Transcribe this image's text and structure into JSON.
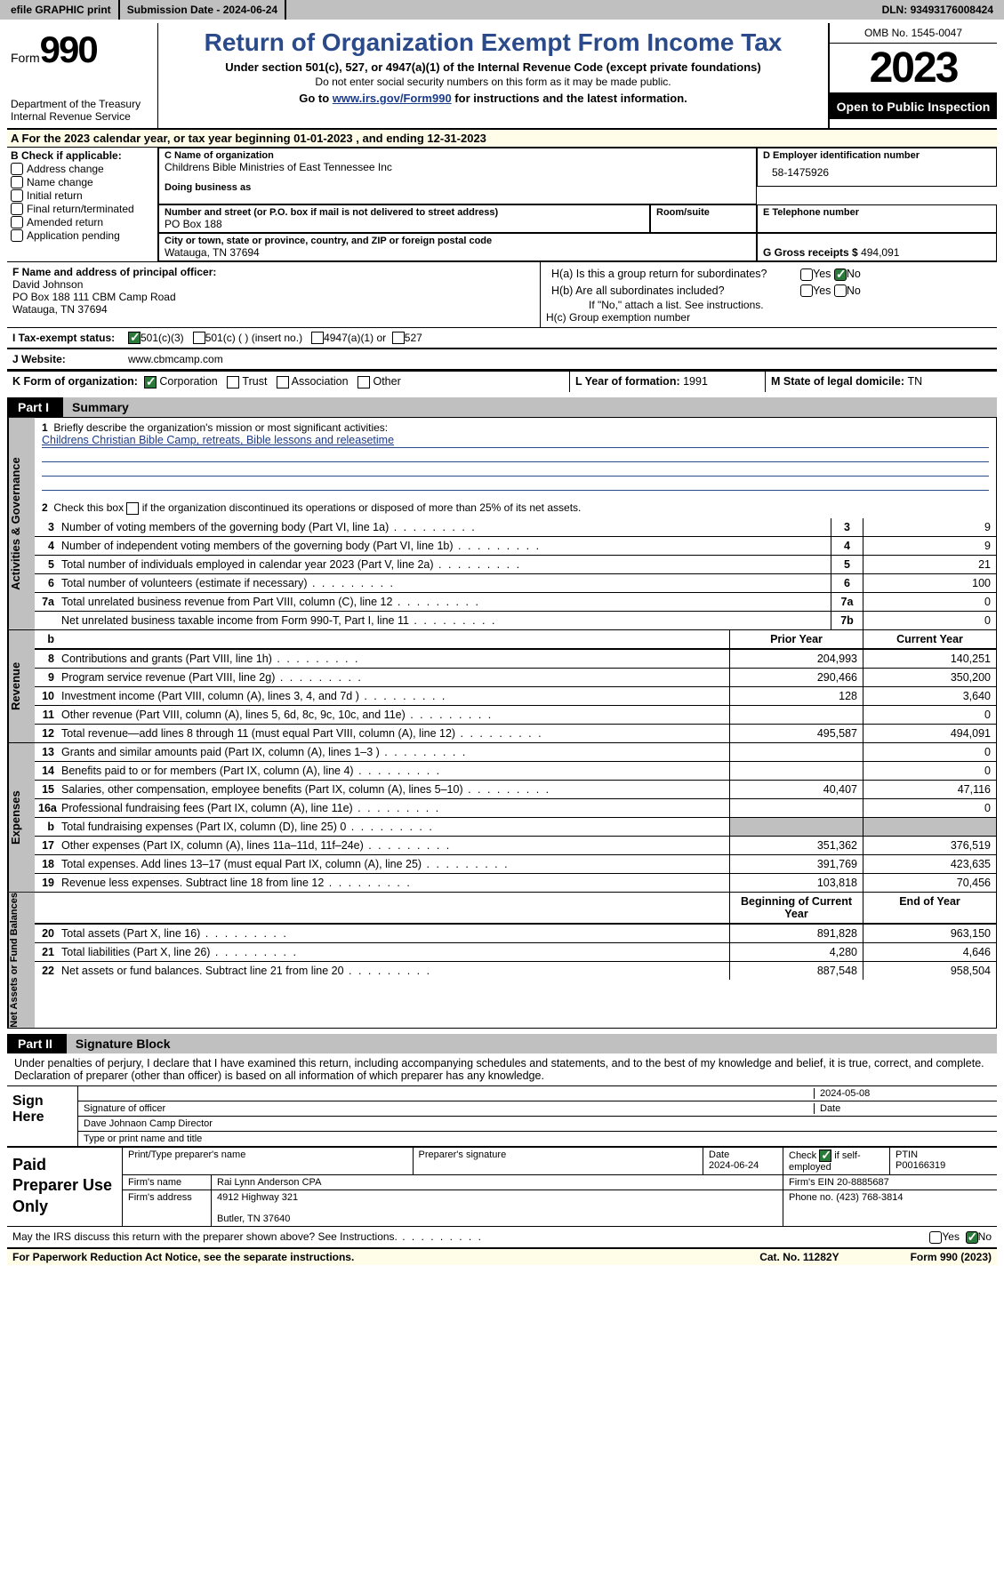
{
  "topbar": {
    "efile": "efile GRAPHIC print",
    "subdate_label": "Submission Date - ",
    "subdate": "2024-06-24",
    "dln_label": "DLN: ",
    "dln": "93493176008424"
  },
  "header": {
    "form_word": "Form",
    "form_no": "990",
    "title": "Return of Organization Exempt From Income Tax",
    "sub1": "Under section 501(c), 527, or 4947(a)(1) of the Internal Revenue Code (except private foundations)",
    "sub2": "Do not enter social security numbers on this form as it may be made public.",
    "sub3a": "Go to ",
    "sub3_link": "www.irs.gov/Form990",
    "sub3b": " for instructions and the latest information.",
    "dept": "Department of the Treasury\nInternal Revenue Service",
    "omb": "OMB No. 1545-0047",
    "year": "2023",
    "open": "Open to Public Inspection"
  },
  "row_a": "A For the 2023 calendar year, or tax year beginning 01-01-2023    , and ending 12-31-2023",
  "col_b": {
    "label": "B Check if applicable:",
    "opts": [
      "Address change",
      "Name change",
      "Initial return",
      "Final return/terminated",
      "Amended return",
      "Application pending"
    ]
  },
  "col_c": {
    "name_label": "C Name of organization",
    "name": "Childrens Bible Ministries of East Tennessee Inc",
    "dba_label": "Doing business as",
    "street_label": "Number and street (or P.O. box if mail is not delivered to street address)",
    "street": "PO Box 188",
    "room_label": "Room/suite",
    "city_label": "City or town, state or province, country, and ZIP or foreign postal code",
    "city": "Watauga, TN   37694"
  },
  "col_d": {
    "label": "D Employer identification number",
    "val": "58-1475926"
  },
  "col_e": {
    "label": "E Telephone number",
    "val": ""
  },
  "col_g": {
    "label": "G Gross receipts $ ",
    "val": "494,091"
  },
  "f": {
    "label": "F  Name and address of principal officer:",
    "name": "David Johnson",
    "addr1": "PO Box 188 111 CBM Camp Road",
    "addr2": "Watauga, TN   37694"
  },
  "h": {
    "a": "H(a)  Is this a group return for subordinates?",
    "b": "H(b)  Are all subordinates included?",
    "bnote": "If \"No,\" attach a list. See instructions.",
    "c": "H(c)  Group exemption number"
  },
  "i": {
    "label": "I    Tax-exempt status:",
    "o1": "501(c)(3)",
    "o2": "501(c) (  ) (insert no.)",
    "o3": "4947(a)(1) or",
    "o4": "527"
  },
  "j": {
    "label": "J    Website:",
    "val": "www.cbmcamp.com"
  },
  "k": {
    "label": "K Form of organization:",
    "o1": "Corporation",
    "o2": "Trust",
    "o3": "Association",
    "o4": "Other"
  },
  "l": {
    "label": "L Year of formation: ",
    "val": "1991"
  },
  "m": {
    "label": "M State of legal domicile: ",
    "val": "TN"
  },
  "part1": {
    "tag": "Part I",
    "title": "Summary"
  },
  "summary": {
    "q1": "Briefly describe the organization's mission or most significant activities:",
    "mission": "Childrens Christian Bible Camp, retreats, Bible lessons and releasetime",
    "q2": "Check this box        if the organization discontinued its operations or disposed of more than 25% of its net assets.",
    "rows_ag": [
      {
        "n": "3",
        "t": "Number of voting members of the governing body (Part VI, line 1a)",
        "bx": "3",
        "v": "9"
      },
      {
        "n": "4",
        "t": "Number of independent voting members of the governing body (Part VI, line 1b)",
        "bx": "4",
        "v": "9"
      },
      {
        "n": "5",
        "t": "Total number of individuals employed in calendar year 2023 (Part V, line 2a)",
        "bx": "5",
        "v": "21"
      },
      {
        "n": "6",
        "t": "Total number of volunteers (estimate if necessary)",
        "bx": "6",
        "v": "100"
      },
      {
        "n": "7a",
        "t": "Total unrelated business revenue from Part VIII, column (C), line 12",
        "bx": "7a",
        "v": "0"
      },
      {
        "n": "",
        "t": "Net unrelated business taxable income from Form 990-T, Part I, line 11",
        "bx": "7b",
        "v": "0"
      }
    ],
    "col_hdr": {
      "prior": "Prior Year",
      "cur": "Current Year",
      "boy": "Beginning of Current Year",
      "eoy": "End of Year"
    },
    "rev": [
      {
        "n": "8",
        "t": "Contributions and grants (Part VIII, line 1h)",
        "p": "204,993",
        "c": "140,251"
      },
      {
        "n": "9",
        "t": "Program service revenue (Part VIII, line 2g)",
        "p": "290,466",
        "c": "350,200"
      },
      {
        "n": "10",
        "t": "Investment income (Part VIII, column (A), lines 3, 4, and 7d )",
        "p": "128",
        "c": "3,640"
      },
      {
        "n": "11",
        "t": "Other revenue (Part VIII, column (A), lines 5, 6d, 8c, 9c, 10c, and 11e)",
        "p": "",
        "c": "0"
      },
      {
        "n": "12",
        "t": "Total revenue—add lines 8 through 11 (must equal Part VIII, column (A), line 12)",
        "p": "495,587",
        "c": "494,091"
      }
    ],
    "exp": [
      {
        "n": "13",
        "t": "Grants and similar amounts paid (Part IX, column (A), lines 1–3 )",
        "p": "",
        "c": "0"
      },
      {
        "n": "14",
        "t": "Benefits paid to or for members (Part IX, column (A), line 4)",
        "p": "",
        "c": "0"
      },
      {
        "n": "15",
        "t": "Salaries, other compensation, employee benefits (Part IX, column (A), lines 5–10)",
        "p": "40,407",
        "c": "47,116"
      },
      {
        "n": "16a",
        "t": "Professional fundraising fees (Part IX, column (A), line 11e)",
        "p": "",
        "c": "0"
      },
      {
        "n": "b",
        "t": "Total fundraising expenses (Part IX, column (D), line 25) 0",
        "p": "GREY",
        "c": "GREY"
      },
      {
        "n": "17",
        "t": "Other expenses (Part IX, column (A), lines 11a–11d, 11f–24e)",
        "p": "351,362",
        "c": "376,519"
      },
      {
        "n": "18",
        "t": "Total expenses. Add lines 13–17 (must equal Part IX, column (A), line 25)",
        "p": "391,769",
        "c": "423,635"
      },
      {
        "n": "19",
        "t": "Revenue less expenses. Subtract line 18 from line 12",
        "p": "103,818",
        "c": "70,456"
      }
    ],
    "na": [
      {
        "n": "20",
        "t": "Total assets (Part X, line 16)",
        "p": "891,828",
        "c": "963,150"
      },
      {
        "n": "21",
        "t": "Total liabilities (Part X, line 26)",
        "p": "4,280",
        "c": "4,646"
      },
      {
        "n": "22",
        "t": "Net assets or fund balances. Subtract line 21 from line 20",
        "p": "887,548",
        "c": "958,504"
      }
    ],
    "tabs": {
      "ag": "Activities & Governance",
      "rev": "Revenue",
      "exp": "Expenses",
      "na": "Net Assets or Fund Balances"
    }
  },
  "part2": {
    "tag": "Part II",
    "title": "Signature Block"
  },
  "sig": {
    "decl": "Under penalties of perjury, I declare that I have examined this return, including accompanying schedules and statements, and to the best of my knowledge and belief, it is true, correct, and complete. Declaration of preparer (other than officer) is based on all information of which preparer has any knowledge.",
    "sign_here": "Sign Here",
    "sig_officer": "Signature of officer",
    "sig_date": "Date",
    "sig_date_val": "2024-05-08",
    "officer_name": "Dave Johnaon  Camp Director",
    "type_label": "Type or print name and title"
  },
  "prep": {
    "label": "Paid Preparer Use Only",
    "h": {
      "name": "Print/Type preparer's name",
      "sig": "Preparer's signature",
      "date": "Date",
      "date_val": "2024-06-24",
      "check": "Check         if self-employed",
      "ptin": "PTIN",
      "ptin_val": "P00166319"
    },
    "firm_name_l": "Firm's name",
    "firm_name": "Rai Lynn Anderson CPA",
    "firm_ein_l": "Firm's EIN ",
    "firm_ein": "20-8885687",
    "firm_addr_l": "Firm's address",
    "firm_addr1": "4912 Highway 321",
    "firm_addr2": "Butler, TN   37640",
    "phone_l": "Phone no. ",
    "phone": "(423) 768-3814"
  },
  "discuss": "May the IRS discuss this return with the preparer shown above? See Instructions.",
  "footer": {
    "pwk": "For Paperwork Reduction Act Notice, see the separate instructions.",
    "cat": "Cat. No. 11282Y",
    "form": "Form 990 (2023)"
  }
}
